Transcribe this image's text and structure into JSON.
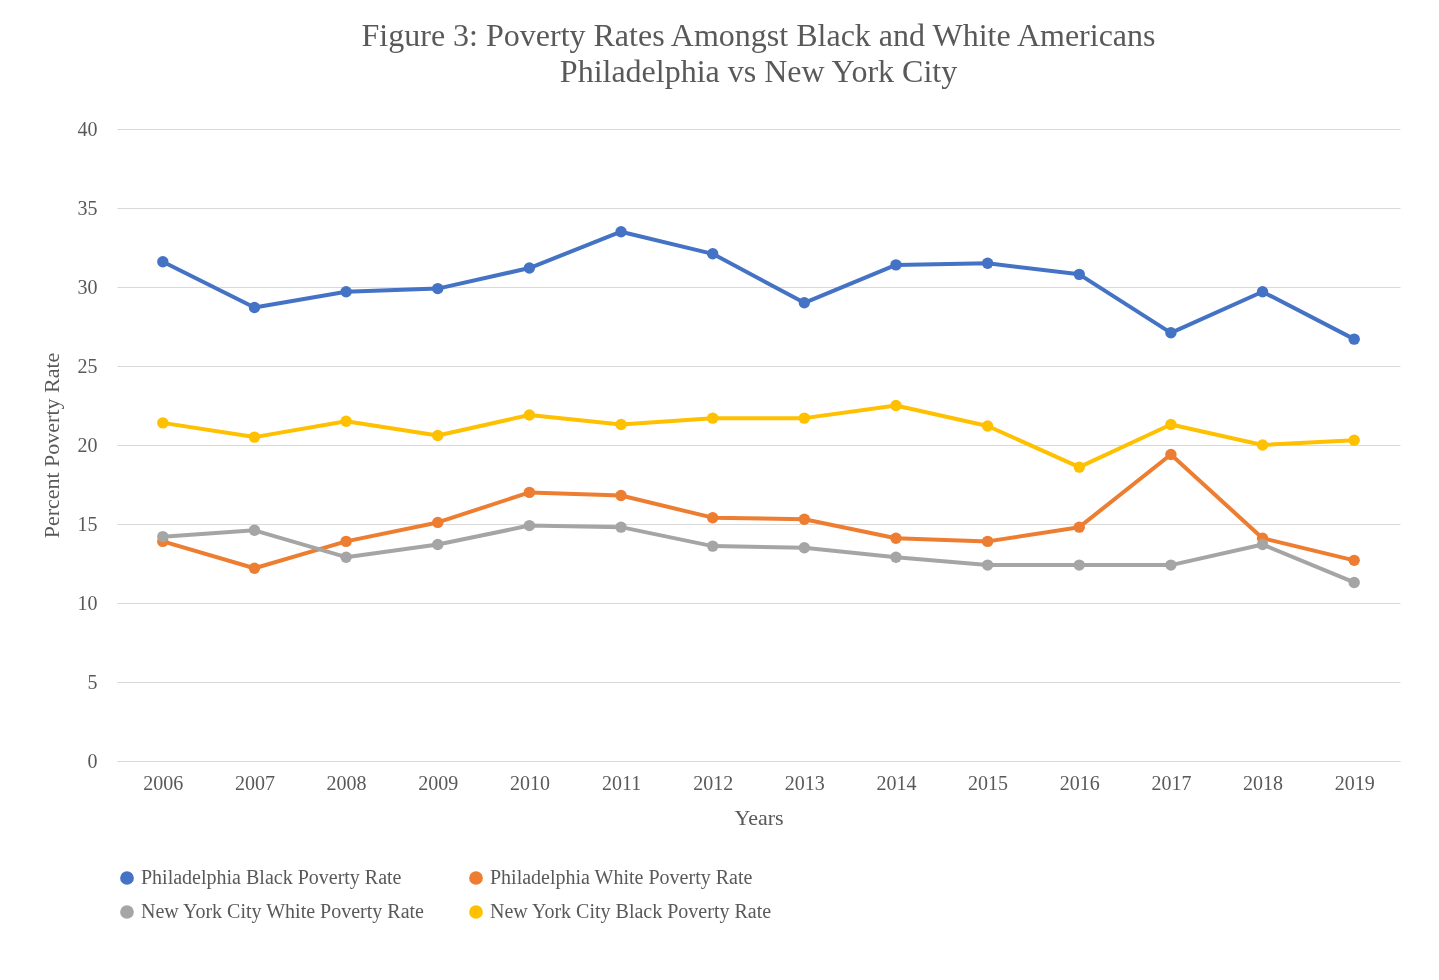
{
  "chart_data": {
    "type": "line",
    "title": "Figure 3: Poverty Rates Amongst Black and White Americans",
    "subtitle": "Philadelphia vs New York City",
    "xlabel": "Years",
    "ylabel": "Percent Poverty Rate",
    "categories": [
      "2006",
      "2007",
      "2008",
      "2009",
      "2010",
      "2011",
      "2012",
      "2013",
      "2014",
      "2015",
      "2016",
      "2017",
      "2018",
      "2019"
    ],
    "series": [
      {
        "name": "Philadelphia Black Poverty Rate",
        "color": "#4472c4",
        "values": [
          31.6,
          28.7,
          29.7,
          29.9,
          31.2,
          33.5,
          32.1,
          29.0,
          31.4,
          31.5,
          30.8,
          27.1,
          29.7,
          26.7
        ]
      },
      {
        "name": "Philadelphia White Poverty Rate",
        "color": "#ed7d31",
        "values": [
          13.9,
          12.2,
          13.9,
          15.1,
          17.0,
          16.8,
          15.4,
          15.3,
          14.1,
          13.9,
          14.8,
          19.4,
          14.1,
          12.7
        ]
      },
      {
        "name": "New York City White Poverty Rate",
        "color": "#a5a5a5",
        "values": [
          14.2,
          14.6,
          12.9,
          13.7,
          14.9,
          14.8,
          13.6,
          13.5,
          12.9,
          12.4,
          12.4,
          12.4,
          13.7,
          11.3
        ]
      },
      {
        "name": "New York City Black Poverty Rate",
        "color": "#ffc000",
        "values": [
          21.4,
          20.5,
          21.5,
          20.6,
          21.9,
          21.3,
          21.7,
          21.7,
          22.5,
          21.2,
          18.6,
          21.3,
          20.0,
          20.3
        ]
      }
    ],
    "ylim": [
      0,
      40
    ],
    "yticks": [
      0,
      5,
      10,
      15,
      20,
      25,
      30,
      35,
      40
    ],
    "grid": "y",
    "legend": "bottom",
    "marker": "circle",
    "line_style": "solid"
  }
}
